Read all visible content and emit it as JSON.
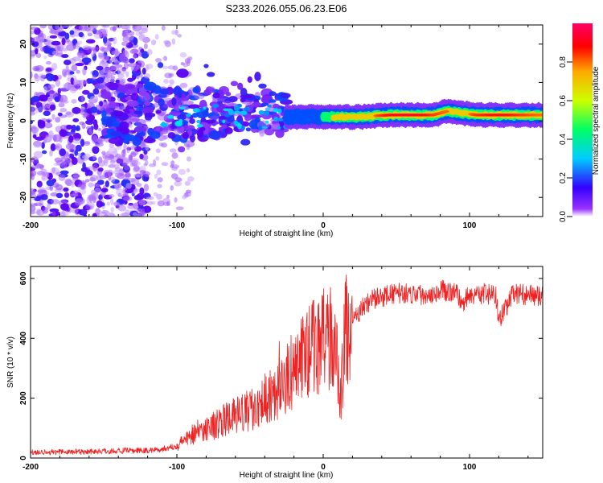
{
  "title": "S233.2026.055.06.23.E06",
  "colors": {
    "snr_line": "#ee2222",
    "axis": "#000000"
  },
  "chart_data": [
    {
      "type": "heatmap",
      "name": "spectrogram",
      "xlabel": "Height of straight line (km)",
      "ylabel": "Frequency (Hz)",
      "xlim": [
        -200,
        150
      ],
      "ylim": [
        -25,
        25
      ],
      "xticks": [
        -200,
        -100,
        0,
        100
      ],
      "xtick_labels": [
        "-200",
        "-100",
        "0",
        "100"
      ],
      "yticks": [
        -20,
        -10,
        0,
        10,
        20
      ],
      "ytick_labels": [
        "-20",
        "-10",
        "0",
        "10",
        "20"
      ],
      "colorbar": {
        "label": "Normalized spectral amplitude",
        "range": [
          0,
          1
        ],
        "ticks": [
          0.0,
          0.2,
          0.4,
          0.6,
          0.8
        ],
        "tick_labels": [
          "0.0",
          "0.2",
          "0.4",
          "0.6",
          "0.8"
        ],
        "colors": [
          "#ffffff",
          "#6600ff",
          "#0000ff",
          "#00ffff",
          "#00ff00",
          "#ffff00",
          "#ff0000",
          "#ff0066"
        ]
      },
      "regions": [
        {
          "description_x_range": [
            -200,
            -150
          ],
          "freq_range": [
            -25,
            25
          ],
          "amplitude": 0.05
        },
        {
          "description_x_range": [
            -150,
            -25
          ],
          "freq_range": [
            -5,
            10
          ],
          "amplitude": 0.15
        },
        {
          "description_x_range": [
            -25,
            150
          ],
          "freq_range": [
            0,
            3
          ],
          "amplitude": 0.85
        }
      ],
      "ridge": [
        {
          "x": -25,
          "f": 1.0,
          "a": 0.3
        },
        {
          "x": 0,
          "f": 1.0,
          "a": 0.5
        },
        {
          "x": 10,
          "f": 1.0,
          "a": 0.8
        },
        {
          "x": 25,
          "f": 1.0,
          "a": 0.7
        },
        {
          "x": 45,
          "f": 1.5,
          "a": 0.9
        },
        {
          "x": 60,
          "f": 1.5,
          "a": 0.95
        },
        {
          "x": 75,
          "f": 1.5,
          "a": 0.85
        },
        {
          "x": 85,
          "f": 2.5,
          "a": 0.8
        },
        {
          "x": 95,
          "f": 2.0,
          "a": 0.75
        },
        {
          "x": 105,
          "f": 1.5,
          "a": 0.85
        },
        {
          "x": 120,
          "f": 1.5,
          "a": 0.9
        },
        {
          "x": 135,
          "f": 1.5,
          "a": 0.85
        },
        {
          "x": 150,
          "f": 1.5,
          "a": 0.8
        }
      ]
    },
    {
      "type": "line",
      "name": "snr",
      "xlabel": "Height of straight line (km)",
      "ylabel": "SNR (10 * v/v)",
      "xlim": [
        -200,
        150
      ],
      "ylim": [
        0,
        640
      ],
      "xticks": [
        -200,
        -100,
        0,
        100
      ],
      "xtick_labels": [
        "-200",
        "-100",
        "0",
        "100"
      ],
      "yticks": [
        0,
        200,
        400,
        600
      ],
      "ytick_labels": [
        "0",
        "200",
        "400",
        "600"
      ],
      "series": [
        {
          "name": "SNR",
          "x": [
            -200,
            -180,
            -160,
            -140,
            -120,
            -110,
            -100,
            -95,
            -90,
            -80,
            -70,
            -60,
            -50,
            -40,
            -35,
            -30,
            -25,
            -20,
            -15,
            -10,
            -5,
            0,
            5,
            10,
            12,
            15,
            20,
            25,
            30,
            40,
            50,
            60,
            70,
            80,
            90,
            95,
            100,
            110,
            118,
            120,
            130,
            140,
            150
          ],
          "values": [
            20,
            20,
            22,
            24,
            25,
            30,
            40,
            60,
            80,
            100,
            120,
            140,
            160,
            200,
            220,
            230,
            260,
            300,
            330,
            360,
            380,
            390,
            410,
            300,
            200,
            420,
            450,
            490,
            520,
            540,
            550,
            550,
            545,
            560,
            555,
            520,
            545,
            550,
            540,
            460,
            550,
            545,
            540
          ]
        }
      ]
    }
  ]
}
